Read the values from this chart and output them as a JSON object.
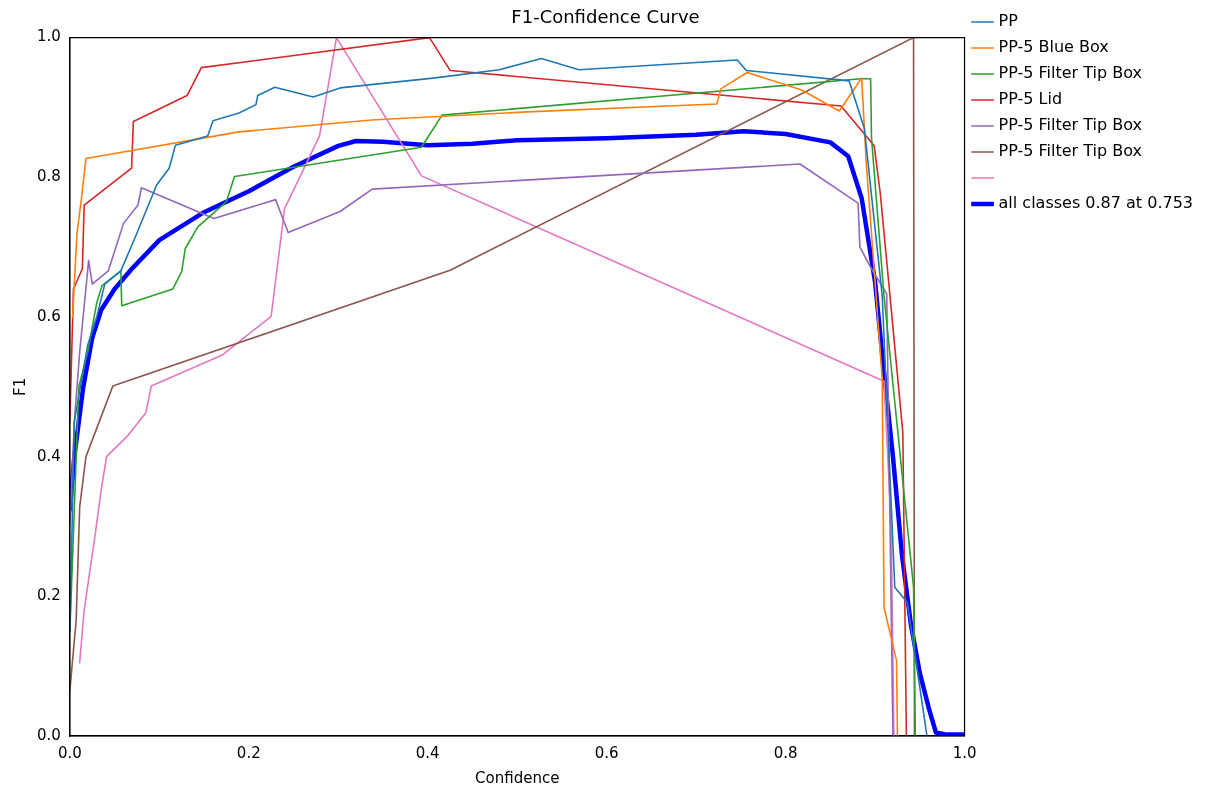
{
  "chart_data": {
    "type": "line",
    "title": "F1-Confidence Curve",
    "xlabel": "Confidence",
    "ylabel": "F1",
    "xlim": [
      0,
      1
    ],
    "ylim": [
      0,
      1
    ],
    "xticks": [
      {
        "value": 0,
        "label": "0.0"
      },
      {
        "value": 0.2,
        "label": "0.2"
      },
      {
        "value": 0.4,
        "label": "0.4"
      },
      {
        "value": 0.6,
        "label": "0.6"
      },
      {
        "value": 0.8,
        "label": "0.8"
      },
      {
        "value": 1,
        "label": "1.0"
      }
    ],
    "yticks": [
      {
        "value": 0,
        "label": "0.0"
      },
      {
        "value": 0.2,
        "label": "0.2"
      },
      {
        "value": 0.4,
        "label": "0.4"
      },
      {
        "value": 0.6,
        "label": "0.6"
      },
      {
        "value": 0.8,
        "label": "0.8"
      },
      {
        "value": 1,
        "label": "1.0"
      }
    ],
    "grid": false,
    "legend": "top right",
    "marker": "none",
    "line_style": "solid",
    "series": [
      {
        "name": "PP",
        "color": "#1f77b4",
        "x": [
          0,
          0.005,
          0.02,
          0.03,
          0.039,
          0.057,
          0.074,
          0.097,
          0.111,
          0.118,
          0.154,
          0.16,
          0.189,
          0.208,
          0.21,
          0.229,
          0.272,
          0.302,
          0.406,
          0.48,
          0.527,
          0.569,
          0.746,
          0.756,
          0.871,
          0.888,
          0.908,
          0.922,
          0.936,
          0.958
        ],
        "values": [
          0.15,
          0.45,
          0.56,
          0.6,
          0.647,
          0.666,
          0.717,
          0.789,
          0.813,
          0.846,
          0.859,
          0.881,
          0.892,
          0.904,
          0.917,
          0.929,
          0.915,
          0.928,
          0.942,
          0.954,
          0.97,
          0.954,
          0.968,
          0.953,
          0.938,
          0.87,
          0.63,
          0.213,
          0.191,
          0
        ]
      },
      {
        "name": "PP-5 Blue Box",
        "color": "#ff7f0e",
        "x": [
          0.003,
          0.008,
          0.013,
          0.018,
          0.189,
          0.337,
          0.517,
          0.723,
          0.728,
          0.757,
          0.818,
          0.86,
          0.885,
          0.89,
          0.908,
          0.91,
          0.924,
          0.925
        ],
        "values": [
          0.6,
          0.72,
          0.77,
          0.827,
          0.865,
          0.882,
          0.894,
          0.905,
          0.927,
          0.95,
          0.925,
          0.895,
          0.942,
          0.823,
          0.511,
          0.184,
          0.108,
          0
        ]
      },
      {
        "name": "PP-5 Filter Tip Box",
        "color": "#2ca02c",
        "x": [
          0,
          0.01,
          0.02,
          0.03,
          0.036,
          0.057,
          0.058,
          0.115,
          0.125,
          0.129,
          0.143,
          0.175,
          0.184,
          0.393,
          0.416,
          0.884,
          0.895,
          0.896,
          0.91,
          0.943,
          0.945
        ],
        "values": [
          0.15,
          0.5,
          0.55,
          0.62,
          0.645,
          0.666,
          0.616,
          0.64,
          0.665,
          0.698,
          0.729,
          0.765,
          0.801,
          0.843,
          0.889,
          0.941,
          0.941,
          0.856,
          0.63,
          0.213,
          0
        ]
      },
      {
        "name": "PP-5 Lid",
        "color": "#d62728",
        "x": [
          0,
          0.004,
          0.014,
          0.016,
          0.069,
          0.071,
          0.131,
          0.147,
          0.402,
          0.425,
          0.862,
          0.899,
          0.906,
          0.931,
          0.935
        ],
        "values": [
          0.45,
          0.64,
          0.669,
          0.76,
          0.813,
          0.88,
          0.917,
          0.957,
          1,
          0.953,
          0.902,
          0.845,
          0.775,
          0.435,
          0
        ]
      },
      {
        "name": "PP-5 Filter Tip Box",
        "color": "#9467bd",
        "x": [
          0,
          0.005,
          0.011,
          0.021,
          0.025,
          0.043,
          0.06,
          0.076,
          0.08,
          0.161,
          0.23,
          0.244,
          0.302,
          0.338,
          0.816,
          0.881,
          0.883,
          0.896,
          0.913,
          0.92
        ],
        "values": [
          0.3,
          0.45,
          0.55,
          0.681,
          0.647,
          0.666,
          0.734,
          0.76,
          0.785,
          0.741,
          0.768,
          0.721,
          0.751,
          0.783,
          0.819,
          0.763,
          0.7,
          0.669,
          0.633,
          0
        ]
      },
      {
        "name": "PP-5 Filter Tip Box",
        "color": "#8c564b",
        "x": [
          0,
          0.007,
          0.011,
          0.018,
          0.048,
          0.425,
          0.943,
          0.944
        ],
        "values": [
          0.065,
          0.165,
          0.328,
          0.4,
          0.501,
          0.667,
          1,
          0
        ]
      },
      {
        "color": "#e377c2",
        "x": [
          0.011,
          0.016,
          0.023,
          0.027,
          0.035,
          0.041,
          0.064,
          0.085,
          0.091,
          0.171,
          0.225,
          0.24,
          0.279,
          0.298,
          0.393,
          0.91,
          0.918,
          0.921
        ],
        "values": [
          0.105,
          0.18,
          0.242,
          0.276,
          0.352,
          0.4,
          0.429,
          0.463,
          0.501,
          0.546,
          0.601,
          0.755,
          0.859,
          1,
          0.802,
          0.508,
          0.3,
          0
        ]
      },
      {
        "name": "all classes 0.87 at 0.753",
        "color": "#0000ff",
        "x": [
          0,
          0.005,
          0.015,
          0.025,
          0.035,
          0.05,
          0.07,
          0.1,
          0.15,
          0.2,
          0.25,
          0.3,
          0.32,
          0.35,
          0.4,
          0.45,
          0.5,
          0.6,
          0.7,
          0.753,
          0.8,
          0.85,
          0.87,
          0.885,
          0.9,
          0.91,
          0.92,
          0.93,
          0.94,
          0.95,
          0.96,
          0.968,
          0.98,
          1
        ],
        "values": [
          0.324,
          0.4,
          0.5,
          0.57,
          0.61,
          0.64,
          0.67,
          0.71,
          0.75,
          0.78,
          0.815,
          0.845,
          0.852,
          0.851,
          0.846,
          0.848,
          0.853,
          0.856,
          0.861,
          0.866,
          0.862,
          0.85,
          0.83,
          0.77,
          0.65,
          0.52,
          0.4,
          0.26,
          0.16,
          0.09,
          0.04,
          0.005,
          0.002,
          0.002
        ]
      }
    ]
  }
}
